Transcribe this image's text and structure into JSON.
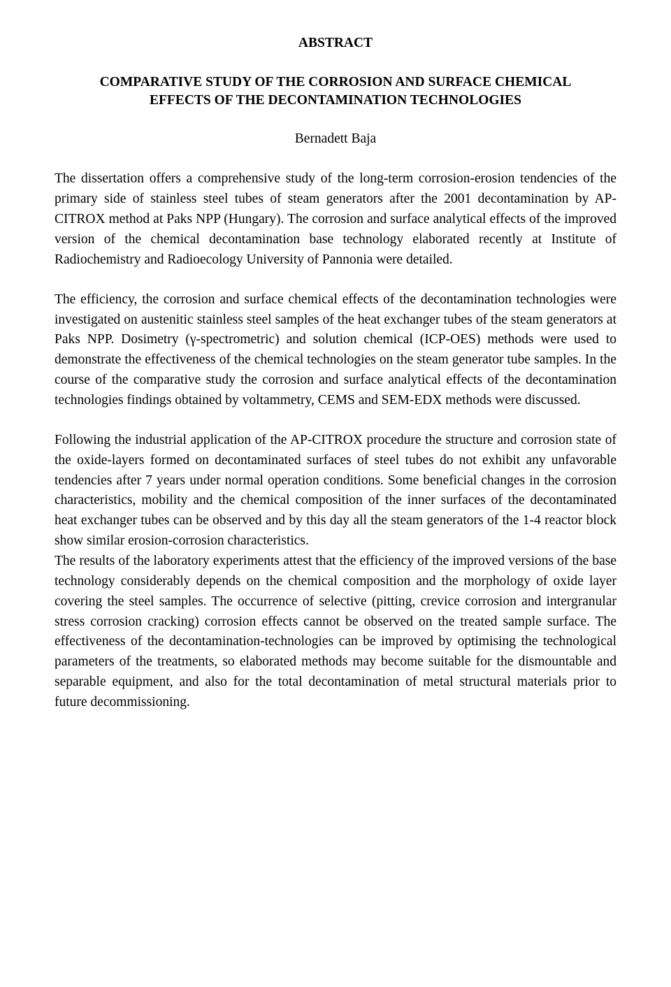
{
  "heading": "ABSTRACT",
  "title_line1": "COMPARATIVE STUDY OF THE CORROSION AND SURFACE CHEMICAL",
  "title_line2": "EFFECTS OF THE DECONTAMINATION TECHNOLOGIES",
  "author": "Bernadett Baja",
  "para1": "The dissertation offers a comprehensive study of the long-term corrosion-erosion tendencies of the primary side of stainless steel tubes of steam generators after the 2001 decontamination by AP-CITROX method at Paks NPP (Hungary). The corrosion and surface analytical effects of the improved version of the chemical decontamination base technology elaborated recently at Institute of Radiochemistry and Radioecology University of Pannonia were detailed.",
  "para2": "The efficiency, the corrosion and surface chemical effects of the decontamination technologies were investigated on austenitic stainless steel samples of the heat exchanger tubes of the steam generators at Paks NPP. Dosimetry (γ-spectrometric) and solution chemical (ICP-OES) methods were used to demonstrate the effectiveness of the chemical technologies on the steam generator tube samples. In the course of the comparative study the corrosion and surface analytical effects of the decontamination technologies findings obtained by voltammetry, CEMS and SEM-EDX methods were discussed.",
  "para3": "Following the industrial application of the AP-CITROX procedure the structure and corrosion state of the oxide-layers formed on decontaminated surfaces of steel tubes do not exhibit any unfavorable tendencies after 7 years under normal operation conditions. Some beneficial changes in the corrosion characteristics, mobility and the chemical composition of the inner surfaces of the decontaminated heat exchanger tubes can be observed and by this day all the steam generators of the 1-4 reactor block show similar erosion-corrosion characteristics.",
  "para4": "The results of the laboratory experiments attest that the efficiency of the improved versions of the base technology considerably depends on the chemical composition and the morphology of oxide layer covering the steel samples. The occurrence of selective (pitting, crevice corrosion and intergranular stress corrosion cracking) corrosion effects cannot be observed on the treated sample surface. The effectiveness of the decontamination-technologies can be improved by optimising the technological parameters of the treatments, so elaborated methods may become suitable for the dismountable and separable equipment, and also for the total decontamination of metal structural materials prior to future decommissioning."
}
